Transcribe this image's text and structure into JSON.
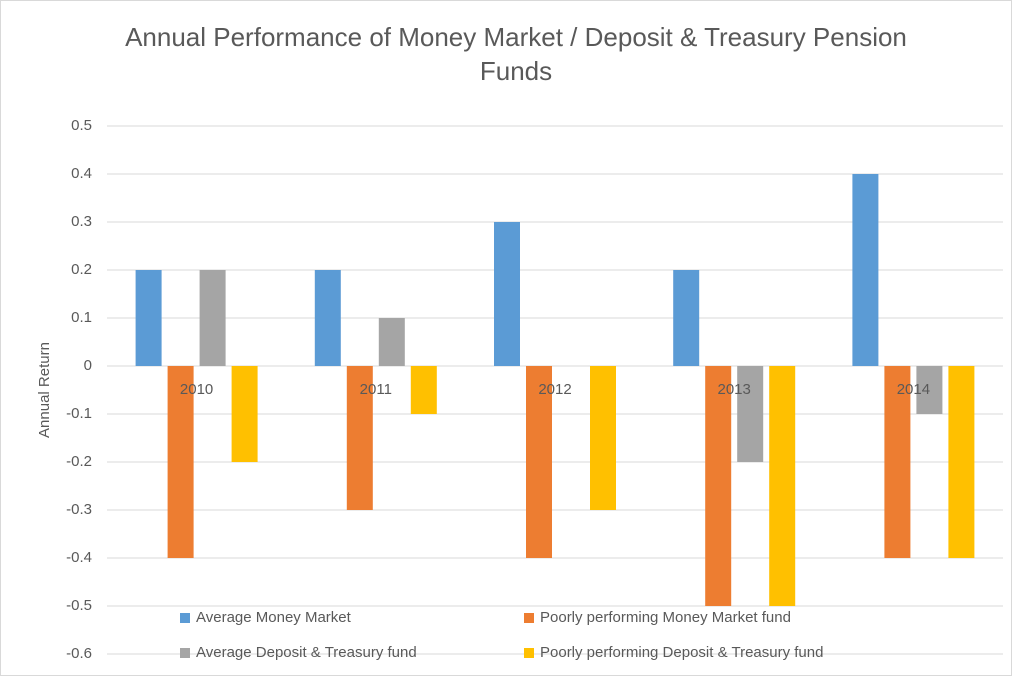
{
  "chart_data": {
    "type": "bar",
    "title": "Annual Performance of Money Market / Deposit & Treasury Pension Funds",
    "ylabel": "Annual Return",
    "categories": [
      "2010",
      "2011",
      "2012",
      "2013",
      "2014"
    ],
    "series": [
      {
        "name": "Average Money Market",
        "color": "#5b9bd5",
        "values": [
          0.2,
          0.2,
          0.3,
          0.2,
          0.4
        ]
      },
      {
        "name": "Poorly performing Money Market fund",
        "color": "#ed7d31",
        "values": [
          -0.4,
          -0.3,
          -0.4,
          -0.5,
          -0.4
        ]
      },
      {
        "name": "Average Deposit & Treasury fund",
        "color": "#a5a5a5",
        "values": [
          0.2,
          0.1,
          0,
          -0.2,
          -0.1
        ]
      },
      {
        "name": "Poorly performing Deposit & Treasury fund",
        "color": "#ffc000",
        "values": [
          -0.2,
          -0.1,
          -0.3,
          -0.5,
          -0.4
        ]
      }
    ],
    "ylim": [
      -0.6,
      0.5
    ],
    "yticks": [
      0.5,
      0.4,
      0.3,
      0.2,
      0.1,
      0,
      -0.1,
      -0.2,
      -0.3,
      -0.4,
      -0.5,
      -0.6
    ],
    "grid": true,
    "legend": "bottom"
  }
}
